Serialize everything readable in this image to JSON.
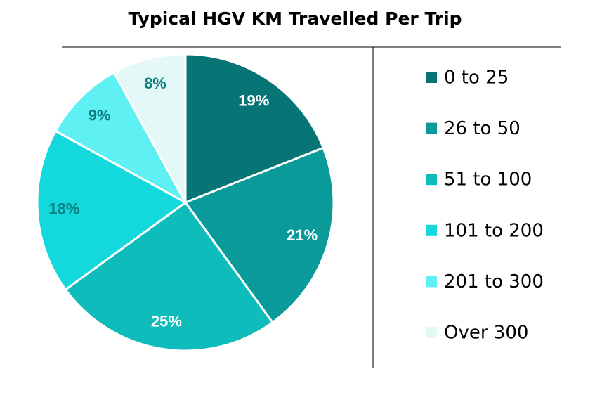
{
  "chart_data": {
    "type": "pie",
    "title": "Typical HGV KM Travelled Per Trip",
    "categories": [
      "0 to 25",
      "26 to 50",
      "51 to 100",
      "101 to 200",
      "201 to 300",
      "Over 300"
    ],
    "values": [
      19,
      21,
      25,
      18,
      9,
      8
    ],
    "value_labels": [
      "19%",
      "21%",
      "25%",
      "18%",
      "9%",
      "8%"
    ],
    "colors": [
      "#077575",
      "#0a9a9a",
      "#0fbcbc",
      "#13d8dc",
      "#5ef0f2",
      "#e4f8f8"
    ]
  }
}
